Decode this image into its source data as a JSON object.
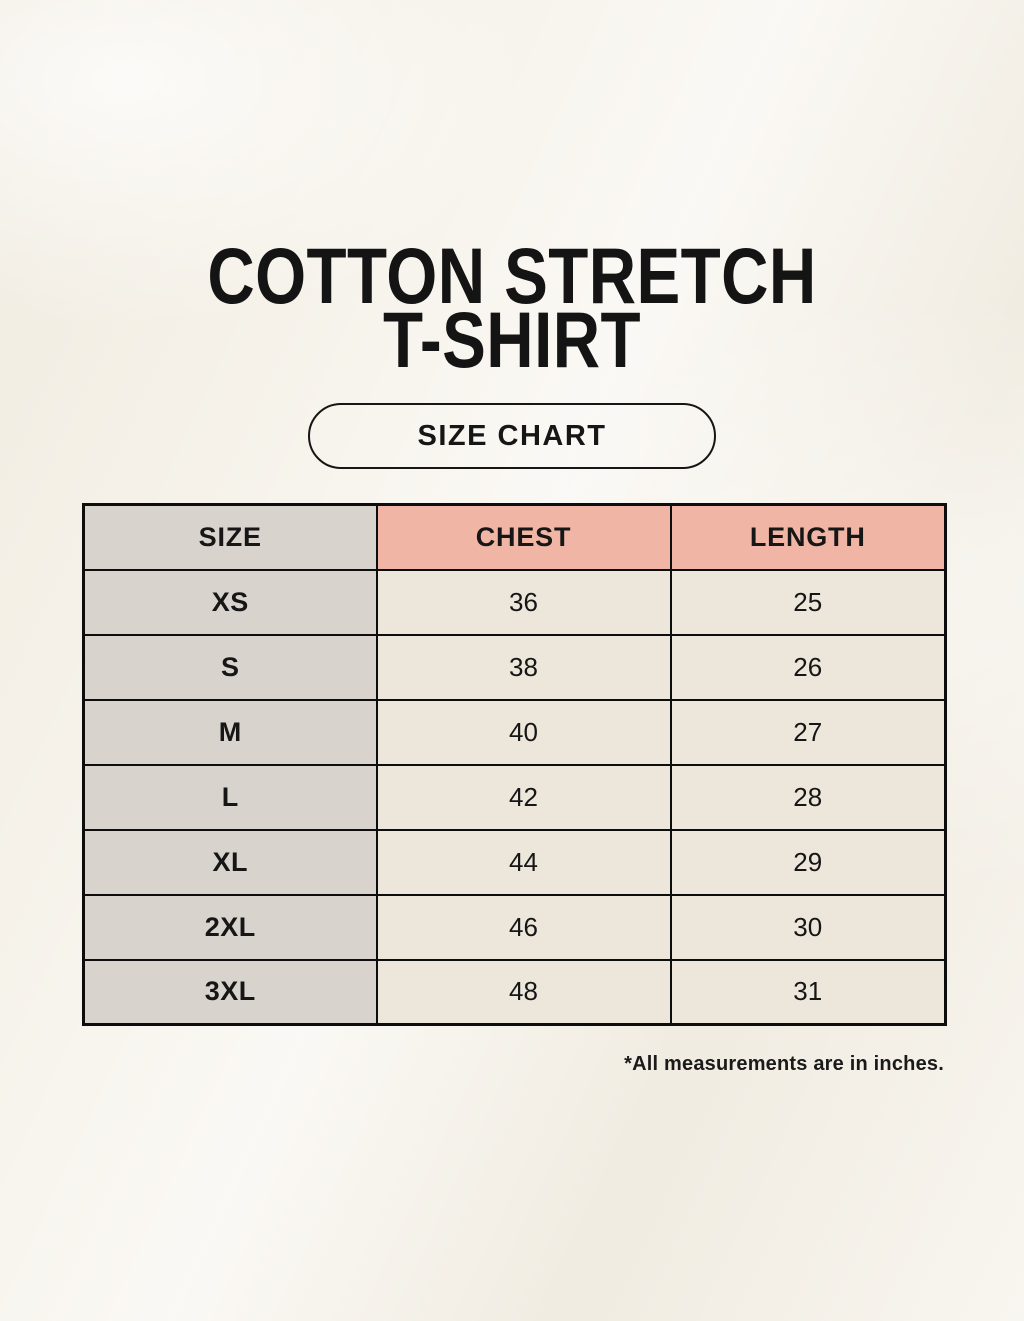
{
  "title": {
    "line1": "COTTON STRETCH",
    "line2": "T-SHIRT"
  },
  "size_chart_button": {
    "label": "SIZE CHART"
  },
  "table": {
    "headers": [
      "SIZE",
      "CHEST",
      "LENGTH"
    ],
    "rows": [
      {
        "size": "XS",
        "chest": "36",
        "length": "25"
      },
      {
        "size": "S",
        "chest": "38",
        "length": "26"
      },
      {
        "size": "M",
        "chest": "40",
        "length": "27"
      },
      {
        "size": "L",
        "chest": "42",
        "length": "28"
      },
      {
        "size": "XL",
        "chest": "44",
        "length": "29"
      },
      {
        "size": "2XL",
        "chest": "46",
        "length": "30"
      },
      {
        "size": "3XL",
        "chest": "48",
        "length": "31"
      }
    ]
  },
  "footnote": "*All measurements are in inches.",
  "colors": {
    "background": "#f5f1e8",
    "header_accent": "#f0b5a4",
    "size_column": "#d9d3ce",
    "value_cell": "#ece6db",
    "border": "#0d0d0d",
    "text": "#161616"
  },
  "chart_data": {
    "type": "table",
    "title": "COTTON STRETCH T-SHIRT — SIZE CHART",
    "columns": [
      "SIZE",
      "CHEST",
      "LENGTH"
    ],
    "rows": [
      [
        "XS",
        36,
        25
      ],
      [
        "S",
        38,
        26
      ],
      [
        "M",
        40,
        27
      ],
      [
        "L",
        42,
        28
      ],
      [
        "XL",
        44,
        29
      ],
      [
        "2XL",
        46,
        30
      ],
      [
        "3XL",
        48,
        31
      ]
    ],
    "units": "inches",
    "note": "*All measurements are in inches."
  }
}
